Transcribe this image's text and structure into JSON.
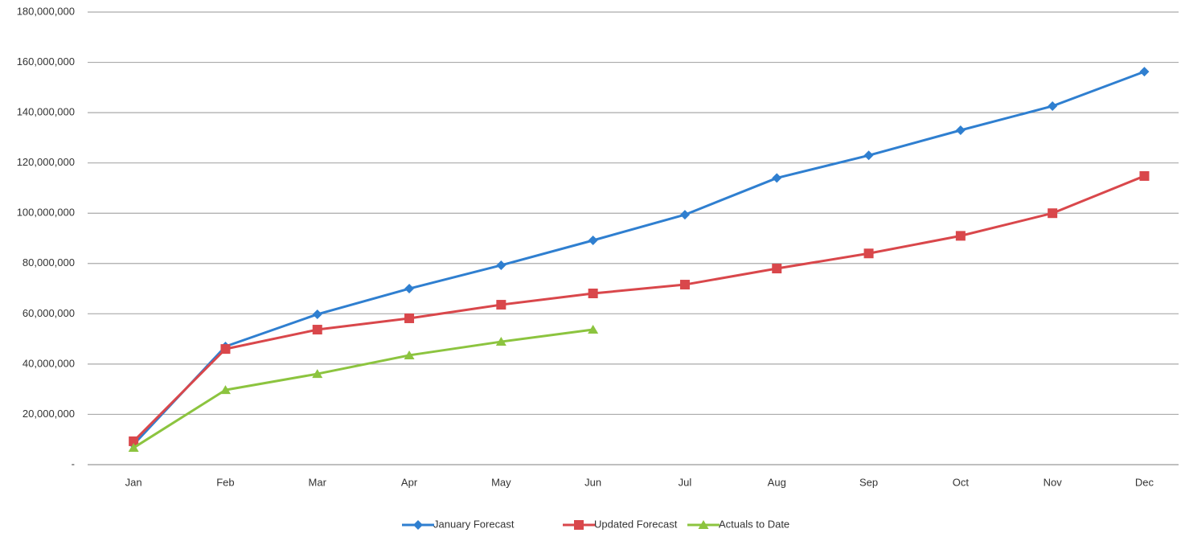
{
  "chart_data": {
    "type": "line",
    "categories": [
      "Jan",
      "Feb",
      "Mar",
      "Apr",
      "May",
      "Jun",
      "Jul",
      "Aug",
      "Sep",
      "Oct",
      "Nov",
      "Dec"
    ],
    "series": [
      {
        "name": "January Forecast",
        "color": "#2f7fd0",
        "marker": "diamond",
        "values": [
          8000000,
          47000000,
          59800000,
          70000000,
          79300000,
          89200000,
          99400000,
          114000000,
          123000000,
          133000000,
          142600000,
          156300000
        ]
      },
      {
        "name": "Updated Forecast",
        "color": "#d9474b",
        "marker": "square",
        "values": [
          9300000,
          46000000,
          53700000,
          58200000,
          63600000,
          68100000,
          71600000,
          78000000,
          84000000,
          91000000,
          100000000,
          114800000
        ]
      },
      {
        "name": "Actuals to Date",
        "color": "#8cc43f",
        "marker": "triangle",
        "values": [
          6700000,
          29700000,
          36100000,
          43500000,
          48900000,
          53700000,
          null,
          null,
          null,
          null,
          null,
          null
        ]
      }
    ],
    "ylim": [
      0,
      180000000
    ],
    "yticks": [
      {
        "value": 0,
        "label": "-"
      },
      {
        "value": 20000000,
        "label": "20,000,000"
      },
      {
        "value": 40000000,
        "label": "40,000,000"
      },
      {
        "value": 60000000,
        "label": "60,000,000"
      },
      {
        "value": 80000000,
        "label": "80,000,000"
      },
      {
        "value": 100000000,
        "label": "100,000,000"
      },
      {
        "value": 120000000,
        "label": "120,000,000"
      },
      {
        "value": 140000000,
        "label": "140,000,000"
      },
      {
        "value": 160000000,
        "label": "160,000,000"
      },
      {
        "value": 180000000,
        "label": "180,000,000"
      }
    ],
    "grid": true,
    "legend": "bottom"
  }
}
